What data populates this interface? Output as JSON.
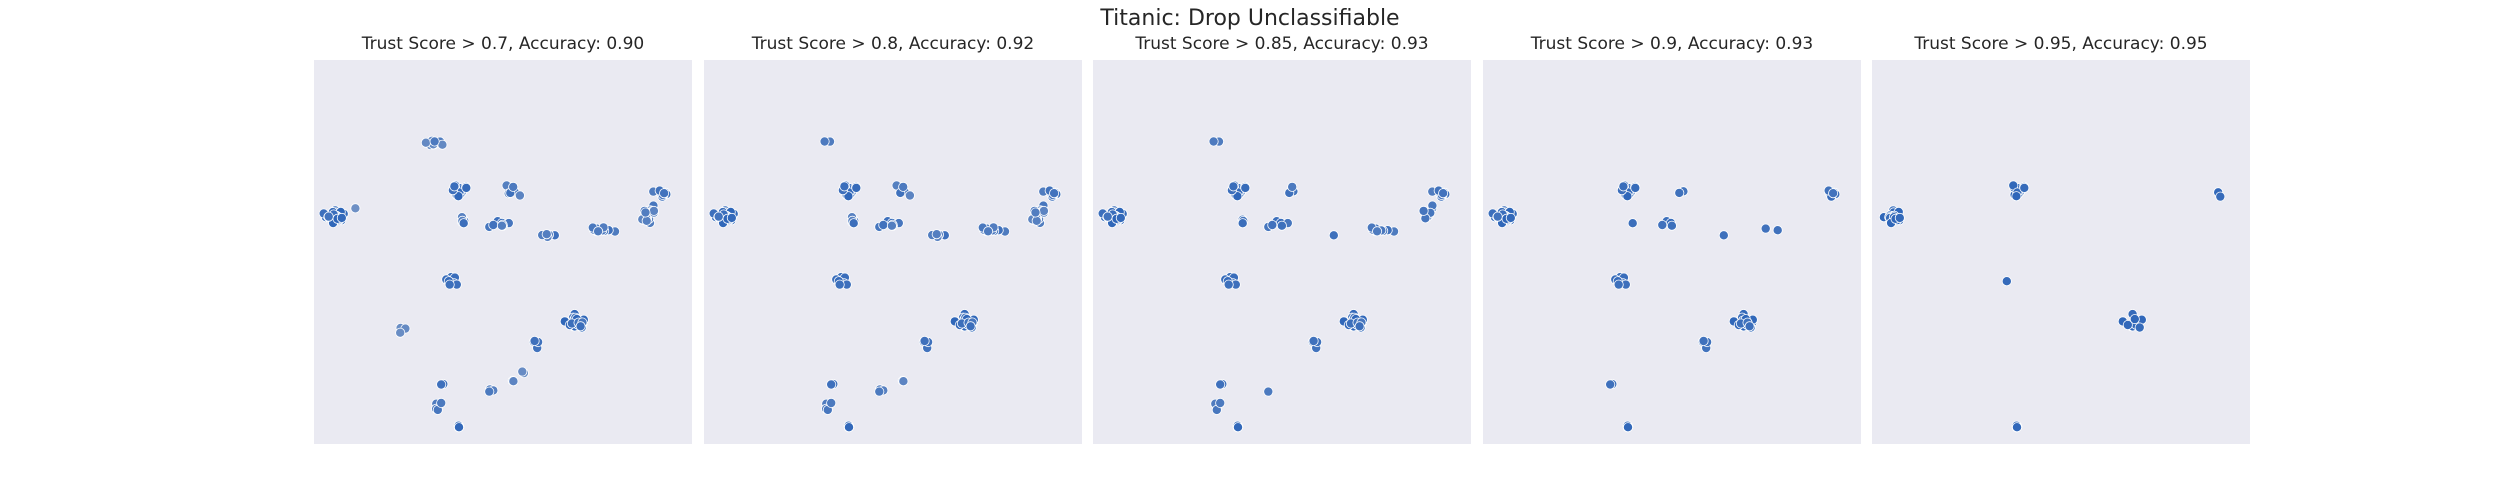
{
  "figure": {
    "title": "Titanic: Drop Unclassifiable"
  },
  "style": {
    "panel_background": "#eaeaf2",
    "point_color_high": "#2a63b8",
    "point_color_low": "#c4c9d6",
    "point_edge": "#ffffff"
  },
  "chart_data": [
    {
      "type": "scatter",
      "title": "Trust Score > 0.7, Accuracy: 0.90",
      "threshold": 0.7,
      "accuracy": 0.9,
      "axes_visible": false,
      "grid": false,
      "xlim": [
        0,
        100
      ],
      "ylim": [
        0,
        100
      ]
    },
    {
      "type": "scatter",
      "title": "Trust Score > 0.8, Accuracy: 0.92",
      "threshold": 0.8,
      "accuracy": 0.92,
      "axes_visible": false,
      "grid": false,
      "xlim": [
        0,
        100
      ],
      "ylim": [
        0,
        100
      ]
    },
    {
      "type": "scatter",
      "title": "Trust Score > 0.85, Accuracy: 0.93",
      "threshold": 0.85,
      "accuracy": 0.93,
      "axes_visible": false,
      "grid": false,
      "xlim": [
        0,
        100
      ],
      "ylim": [
        0,
        100
      ]
    },
    {
      "type": "scatter",
      "title": "Trust Score > 0.9, Accuracy: 0.93",
      "threshold": 0.9,
      "accuracy": 0.93,
      "axes_visible": false,
      "grid": false,
      "xlim": [
        0,
        100
      ],
      "ylim": [
        0,
        100
      ]
    },
    {
      "type": "scatter",
      "title": "Trust Score > 0.95, Accuracy: 0.95",
      "threshold": 0.95,
      "accuracy": 0.95,
      "axes_visible": false,
      "grid": false,
      "xlim": [
        0,
        100
      ],
      "ylim": [
        0,
        100
      ]
    }
  ]
}
